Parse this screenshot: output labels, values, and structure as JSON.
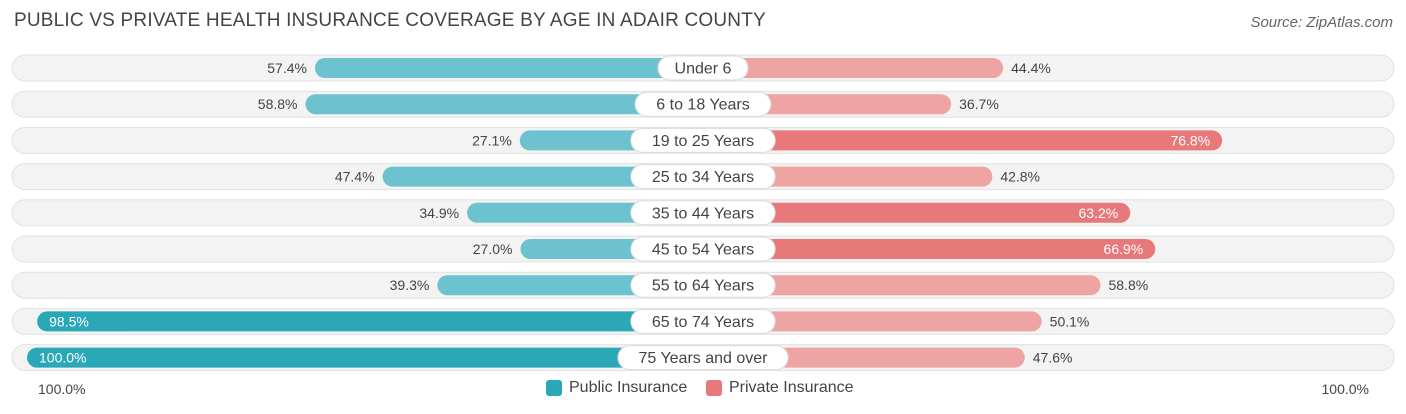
{
  "title": "PUBLIC VS PRIVATE HEALTH INSURANCE COVERAGE BY AGE IN ADAIR COUNTY",
  "source": "Source: ZipAtlas.com",
  "colors": {
    "public": "#6cc3cf",
    "public_strong": "#2aa8b8",
    "private": "#eea4a2",
    "private_strong": "#e8797a",
    "row_bg": "#f2f2f2"
  },
  "chart_data": {
    "type": "bar",
    "orientation": "horizontal-diverging",
    "categories": [
      "Under 6",
      "6 to 18 Years",
      "19 to 25 Years",
      "25 to 34 Years",
      "35 to 44 Years",
      "45 to 54 Years",
      "55 to 64 Years",
      "65 to 74 Years",
      "75 Years and over"
    ],
    "series": [
      {
        "name": "Public Insurance",
        "values": [
          57.4,
          58.8,
          27.1,
          47.4,
          34.9,
          27.0,
          39.3,
          98.5,
          100.0
        ],
        "labels": [
          "57.4%",
          "58.8%",
          "27.1%",
          "47.4%",
          "34.9%",
          "27.0%",
          "39.3%",
          "98.5%",
          "100.0%"
        ]
      },
      {
        "name": "Private Insurance",
        "values": [
          44.4,
          36.7,
          76.8,
          42.8,
          63.2,
          66.9,
          58.8,
          50.1,
          47.6
        ],
        "labels": [
          "44.4%",
          "36.7%",
          "76.8%",
          "42.8%",
          "63.2%",
          "66.9%",
          "58.8%",
          "50.1%",
          "47.6%"
        ]
      }
    ],
    "axis_left_label": "100.0%",
    "axis_right_label": "100.0%",
    "xlim": [
      0,
      100
    ],
    "legend_position": "bottom-center"
  }
}
